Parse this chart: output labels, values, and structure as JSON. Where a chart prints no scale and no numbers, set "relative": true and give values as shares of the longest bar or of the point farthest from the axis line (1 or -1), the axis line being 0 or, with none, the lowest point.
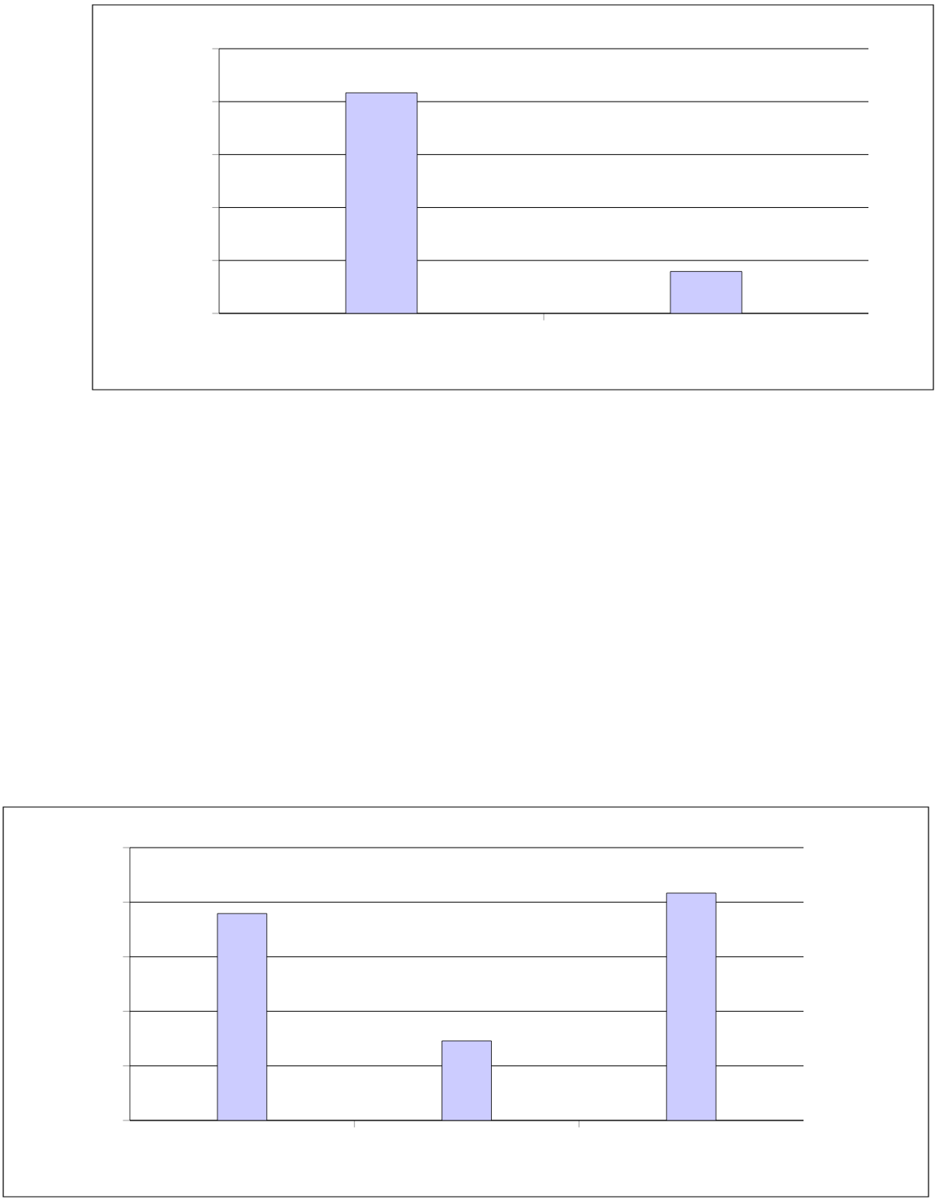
{
  "chart_data": [
    {
      "type": "bar",
      "categories": [
        null,
        null
      ],
      "values": [
        1,
        0.19
      ],
      "color": "#ccccff",
      "relative": true,
      "grid": "y"
    },
    {
      "type": "bar",
      "categories": [
        null,
        null,
        null
      ],
      "values": [
        0.91,
        0.35,
        1
      ],
      "color": "#ccccff",
      "relative": true,
      "grid": "y"
    }
  ]
}
